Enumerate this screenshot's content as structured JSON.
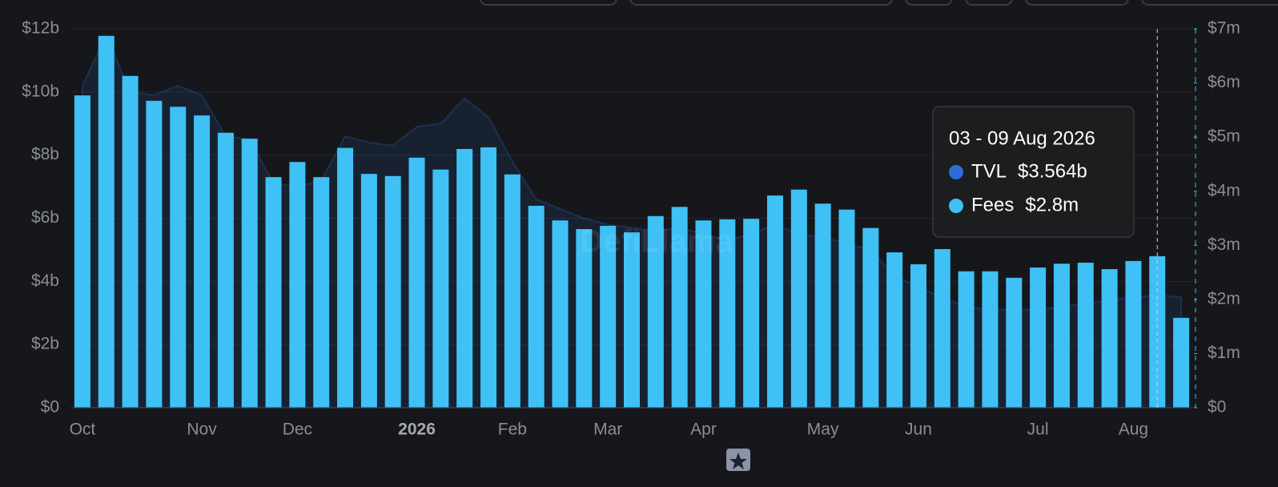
{
  "chart_data": {
    "type": "bar-area",
    "watermark": "DefiLlama",
    "categories": [
      "Oct",
      null,
      null,
      null,
      null,
      "Nov",
      null,
      null,
      null,
      "Dec",
      null,
      null,
      null,
      null,
      "2026",
      null,
      null,
      null,
      "Feb",
      null,
      null,
      null,
      "Mar",
      null,
      null,
      null,
      "Apr",
      null,
      null,
      null,
      null,
      "May",
      null,
      null,
      null,
      "Jun",
      null,
      null,
      null,
      null,
      "Jul",
      null,
      null,
      null,
      "Aug",
      null,
      null
    ],
    "series": [
      {
        "name": "TVL",
        "color": "#2b6fd6",
        "kind": "area",
        "values": [
          10.2,
          11.8,
          10.0,
          9.9,
          10.2,
          9.9,
          8.6,
          8.5,
          7.1,
          7.0,
          7.2,
          8.6,
          8.4,
          8.3,
          8.9,
          9.0,
          9.8,
          9.2,
          7.8,
          6.6,
          6.3,
          6.0,
          5.8,
          5.7,
          5.6,
          5.7,
          5.5,
          5.3,
          5.5,
          5.8,
          5.5,
          5.4,
          5.2,
          5.0,
          4.2,
          3.8,
          3.5,
          3.2,
          3.1,
          3.1,
          3.1,
          3.2,
          3.3,
          3.4,
          3.5,
          3.564,
          3.5
        ]
      },
      {
        "name": "Fees",
        "color": "#3fc1f6",
        "kind": "bar",
        "axis": "y2",
        "values": [
          5.77,
          6.87,
          6.13,
          5.67,
          5.56,
          5.4,
          5.08,
          4.97,
          4.26,
          4.54,
          4.26,
          4.8,
          4.32,
          4.28,
          4.62,
          4.4,
          4.78,
          4.81,
          4.31,
          3.73,
          3.46,
          3.3,
          3.36,
          3.24,
          3.54,
          3.71,
          3.46,
          3.48,
          3.49,
          3.92,
          4.03,
          3.77,
          3.66,
          3.32,
          2.87,
          2.65,
          2.93,
          2.52,
          2.52,
          2.4,
          2.59,
          2.66,
          2.68,
          2.56,
          2.71,
          2.8,
          1.66
        ]
      }
    ],
    "ylim": [
      0,
      12
    ],
    "yticks": [
      {
        "value": 0,
        "label": "$0"
      },
      {
        "value": 2,
        "label": "$2b"
      },
      {
        "value": 4,
        "label": "$4b"
      },
      {
        "value": 6,
        "label": "$6b"
      },
      {
        "value": 8,
        "label": "$8b"
      },
      {
        "value": 10,
        "label": "$10b"
      },
      {
        "value": 12,
        "label": "$12b"
      }
    ],
    "y2lim": [
      0,
      7
    ],
    "y2ticks": [
      {
        "value": 0,
        "label": "$0"
      },
      {
        "value": 1,
        "label": "$1m"
      },
      {
        "value": 2,
        "label": "$2m"
      },
      {
        "value": 3,
        "label": "$3m"
      },
      {
        "value": 4,
        "label": "$4m"
      },
      {
        "value": 5,
        "label": "$5m"
      },
      {
        "value": 6,
        "label": "$6m"
      },
      {
        "value": 7,
        "label": "$7m"
      }
    ],
    "grid": true,
    "tooltip": {
      "title": "03 - 09 Aug 2026",
      "index": 45,
      "items": [
        {
          "name": "TVL",
          "value": "$3.564b",
          "color": "#2b6fd6"
        },
        {
          "name": "Fees",
          "value": "$2.8m",
          "color": "#3fc1f6"
        }
      ]
    }
  }
}
